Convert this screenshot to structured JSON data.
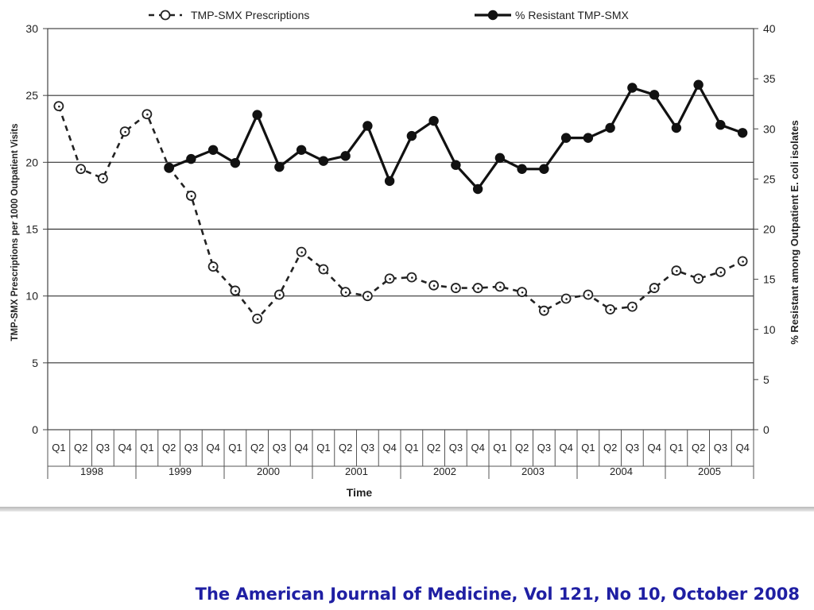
{
  "chart_data": {
    "type": "line",
    "xlabel": "Time",
    "ylabel": "TMP-SMX Prescriptions per 1000 Outpatient Visits",
    "y2label": "% Resistant among Outpatient E. coli isolates",
    "ylim": [
      0,
      30
    ],
    "y2lim": [
      0,
      40
    ],
    "yticks": [
      0,
      5,
      10,
      15,
      20,
      25,
      30
    ],
    "y2ticks": [
      0,
      5,
      10,
      15,
      20,
      25,
      30,
      35,
      40
    ],
    "grid": "horizontal",
    "legend_position": "top",
    "years": [
      "1998",
      "1999",
      "2000",
      "2001",
      "2002",
      "2003",
      "2004",
      "2005"
    ],
    "quarters": [
      "Q1",
      "Q2",
      "Q3",
      "Q4"
    ],
    "series": [
      {
        "name": "TMP-SMX Prescriptions",
        "axis": "left",
        "style": "dashed-open-circle",
        "color": "#222222",
        "values": [
          24.2,
          19.5,
          18.8,
          22.3,
          23.6,
          19.6,
          17.5,
          12.2,
          10.4,
          8.3,
          10.1,
          13.3,
          12.0,
          10.3,
          10.0,
          11.3,
          11.4,
          10.8,
          10.6,
          10.6,
          10.7,
          10.3,
          8.9,
          9.8,
          10.1,
          9.0,
          9.2,
          10.6,
          11.9,
          11.3,
          11.8,
          12.6
        ]
      },
      {
        "name": "% Resistant TMP-SMX",
        "axis": "right",
        "style": "solid-filled-circle",
        "color": "#111111",
        "values": [
          null,
          null,
          null,
          null,
          null,
          26.1,
          27.0,
          27.9,
          26.6,
          31.4,
          26.2,
          27.9,
          26.8,
          27.3,
          30.3,
          24.8,
          29.3,
          30.8,
          26.4,
          24.0,
          27.1,
          26.0,
          26.0,
          29.1,
          29.1,
          30.1,
          34.1,
          33.4,
          30.1,
          34.4,
          30.4,
          29.6
        ]
      }
    ]
  },
  "citation": "The American Journal of Medicine, Vol 121, No 10, October 2008"
}
